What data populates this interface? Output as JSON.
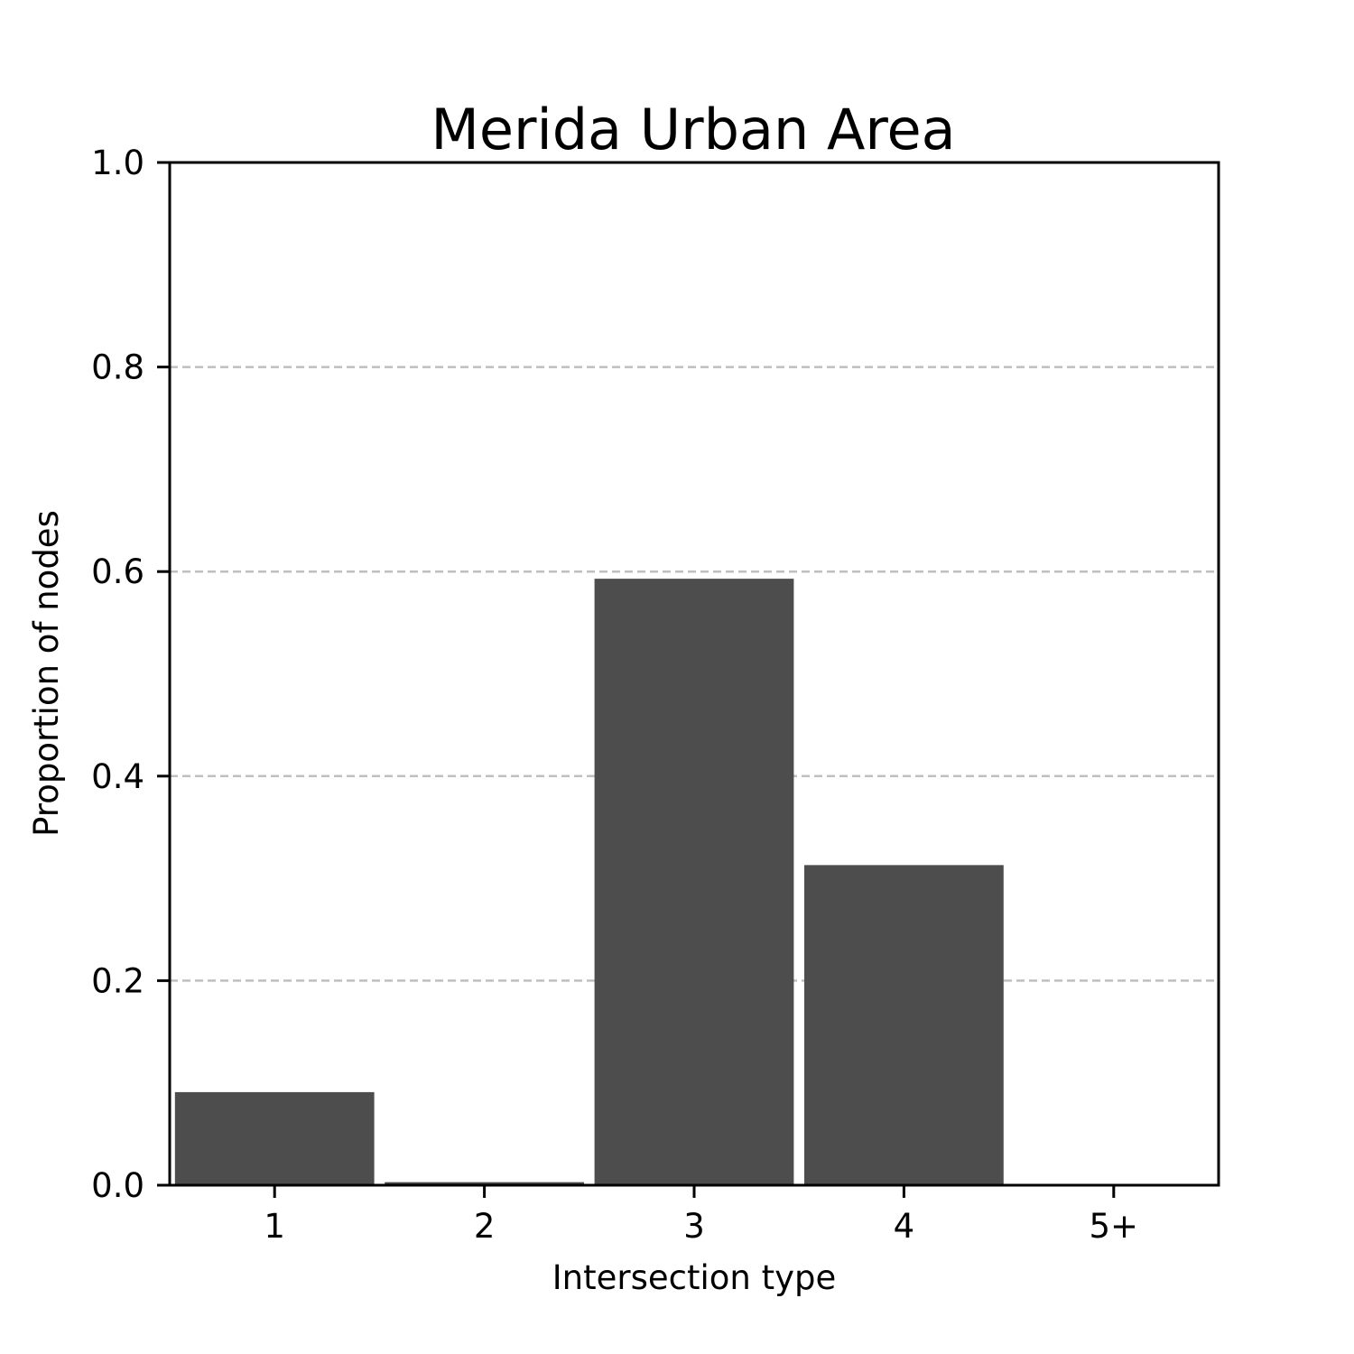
{
  "chart_data": {
    "type": "bar",
    "title": "Merida Urban Area",
    "xlabel": "Intersection type",
    "ylabel": "Proportion of nodes",
    "categories": [
      "1",
      "2",
      "3",
      "4",
      "5+"
    ],
    "values": [
      0.091,
      0.003,
      0.593,
      0.313,
      0.001
    ],
    "ylim": [
      0,
      1
    ],
    "yticks": [
      "0.0",
      "0.2",
      "0.4",
      "0.6",
      "0.8",
      "1.0"
    ],
    "grid": "horizontal dashed",
    "bar_color": "#4d4d4d",
    "grid_color": "#bfbfbf"
  }
}
